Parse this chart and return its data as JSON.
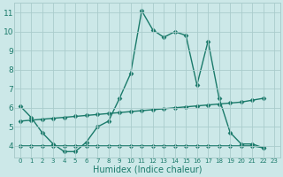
{
  "x": [
    0,
    1,
    2,
    3,
    4,
    5,
    6,
    7,
    8,
    9,
    10,
    11,
    12,
    13,
    14,
    15,
    16,
    17,
    18,
    19,
    20,
    21,
    22,
    23
  ],
  "line_main": [
    6.1,
    5.5,
    4.7,
    4.1,
    3.7,
    3.7,
    4.2,
    5.0,
    5.3,
    6.5,
    7.8,
    11.1,
    10.1,
    9.7,
    10.0,
    9.8,
    7.2,
    9.5,
    6.5,
    4.7,
    4.1,
    4.1,
    3.9,
    null
  ],
  "line_diag_x": [
    0,
    1,
    2,
    3,
    4,
    5,
    6,
    7,
    8,
    9,
    10,
    11,
    12,
    13,
    14,
    15,
    16,
    17,
    18,
    19,
    20,
    21,
    22
  ],
  "line_diag_y": [
    5.3,
    5.35,
    5.4,
    5.45,
    5.5,
    5.55,
    5.6,
    5.65,
    5.7,
    5.75,
    5.8,
    5.85,
    5.9,
    5.95,
    6.0,
    6.05,
    6.1,
    6.15,
    6.2,
    6.25,
    6.3,
    6.4,
    6.5
  ],
  "line_flat_x": [
    0,
    1,
    2,
    3,
    4,
    5,
    6,
    7,
    8,
    9,
    10,
    11,
    12,
    13,
    14,
    15,
    16,
    17,
    18,
    19,
    20,
    21,
    22
  ],
  "line_flat_y": [
    4.0,
    4.0,
    4.0,
    4.0,
    4.0,
    4.0,
    4.0,
    4.0,
    4.0,
    4.0,
    4.0,
    4.0,
    4.0,
    4.0,
    4.0,
    4.0,
    4.0,
    4.0,
    4.0,
    4.0,
    4.0,
    4.0,
    3.9
  ],
  "color": "#1a7a6a",
  "bg_color": "#cce8e8",
  "grid_color": "#aacccc",
  "xlim": [
    -0.5,
    23.5
  ],
  "ylim": [
    3.4,
    11.5
  ],
  "xlabel": "Humidex (Indice chaleur)",
  "yticks": [
    4,
    5,
    6,
    7,
    8,
    9,
    10,
    11
  ],
  "xticks": [
    0,
    1,
    2,
    3,
    4,
    5,
    6,
    7,
    8,
    9,
    10,
    11,
    12,
    13,
    14,
    15,
    16,
    17,
    18,
    19,
    20,
    21,
    22,
    23
  ],
  "marker": "D",
  "markersize": 2.5,
  "linewidth": 1.0,
  "xlabel_fontsize": 7,
  "xtick_fontsize": 5.0,
  "ytick_fontsize": 6.5
}
